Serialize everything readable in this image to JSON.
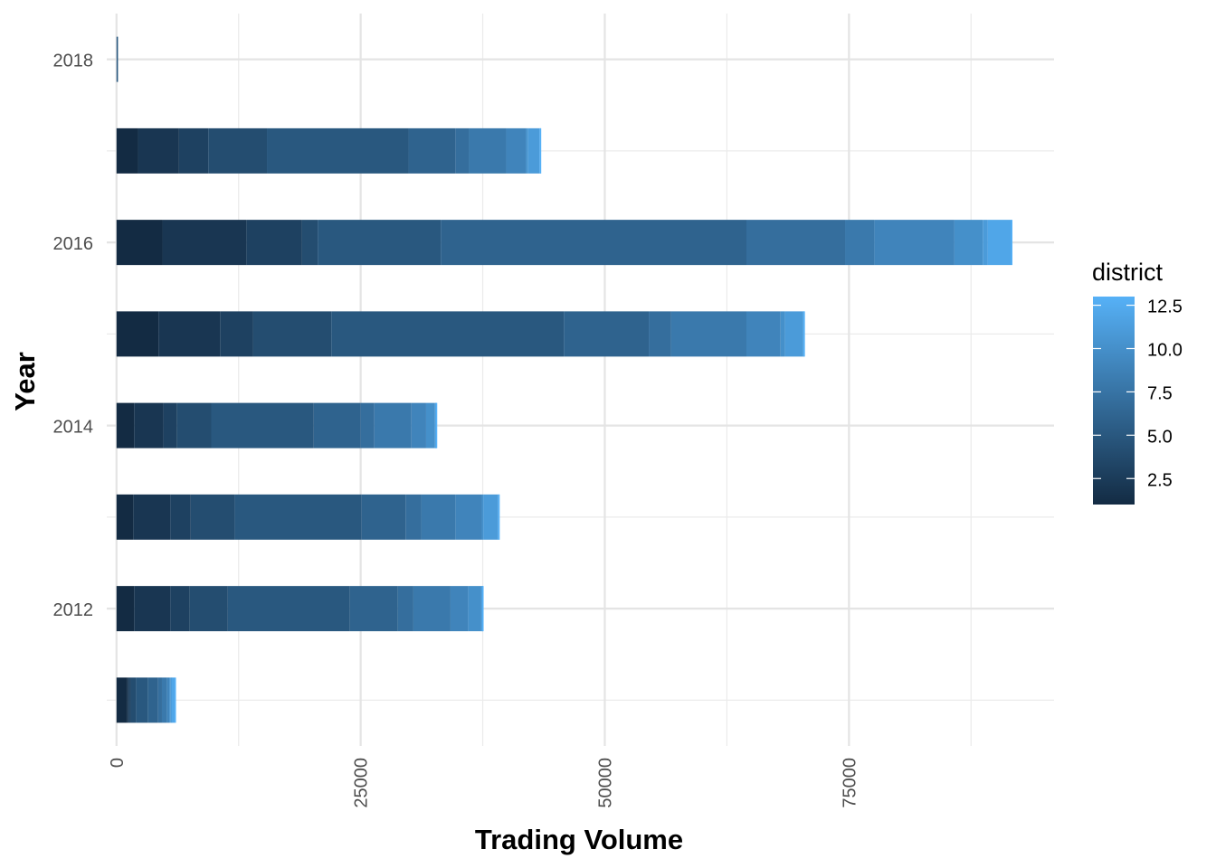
{
  "chart_data": {
    "type": "bar",
    "orientation": "horizontal",
    "stacked": true,
    "xlabel": "Trading Volume",
    "ylabel": "Year",
    "xlim": [
      -1000,
      96000
    ],
    "ylim": [
      2010.5,
      2018.5
    ],
    "x_ticks": [
      "0",
      "25000",
      "50000",
      "75000"
    ],
    "x_tick_values": [
      0,
      25000,
      50000,
      75000
    ],
    "y_ticks": [
      "2012",
      "2014",
      "2016",
      "2018"
    ],
    "y_tick_values": [
      2012,
      2014,
      2016,
      2018
    ],
    "grid": true,
    "legend": {
      "title": "district",
      "position": "right",
      "type": "colorbar",
      "range": [
        1,
        13
      ],
      "ticks": [
        "2.5",
        "5.0",
        "7.5",
        "10.0",
        "12.5"
      ],
      "tick_values": [
        2.5,
        5.0,
        7.5,
        10.0,
        12.5
      ],
      "low_color": "#132B43",
      "high_color": "#56B1F7"
    },
    "series": [
      {
        "year": 2011,
        "segments": [
          {
            "district": 1,
            "value": 1100
          },
          {
            "district": 2,
            "value": 150
          },
          {
            "district": 3,
            "value": 200
          },
          {
            "district": 4,
            "value": 550
          },
          {
            "district": 5,
            "value": 1200
          },
          {
            "district": 6,
            "value": 1050
          },
          {
            "district": 7,
            "value": 400
          },
          {
            "district": 8,
            "value": 500
          },
          {
            "district": 9,
            "value": 250
          },
          {
            "district": 10,
            "value": 150
          },
          {
            "district": 11,
            "value": 100
          },
          {
            "district": 12,
            "value": 300
          },
          {
            "district": 13,
            "value": 50
          }
        ]
      },
      {
        "year": 2012,
        "segments": [
          {
            "district": 1,
            "value": 1800
          },
          {
            "district": 2,
            "value": 3700
          },
          {
            "district": 3,
            "value": 2000
          },
          {
            "district": 4,
            "value": 3900
          },
          {
            "district": 5,
            "value": 12500
          },
          {
            "district": 6,
            "value": 4900
          },
          {
            "district": 7,
            "value": 1600
          },
          {
            "district": 8,
            "value": 3800
          },
          {
            "district": 9,
            "value": 1800
          },
          {
            "district": 10,
            "value": 1350
          },
          {
            "district": 11,
            "value": 50
          },
          {
            "district": 12,
            "value": 50
          },
          {
            "district": 13,
            "value": 50
          }
        ]
      },
      {
        "year": 2013,
        "segments": [
          {
            "district": 1,
            "value": 1700
          },
          {
            "district": 2,
            "value": 3800
          },
          {
            "district": 3,
            "value": 2100
          },
          {
            "district": 4,
            "value": 4500
          },
          {
            "district": 5,
            "value": 13000
          },
          {
            "district": 6,
            "value": 4500
          },
          {
            "district": 7,
            "value": 1600
          },
          {
            "district": 8,
            "value": 3500
          },
          {
            "district": 9,
            "value": 2700
          },
          {
            "district": 10,
            "value": 150
          },
          {
            "district": 11,
            "value": 1500
          },
          {
            "district": 12,
            "value": 50
          },
          {
            "district": 13,
            "value": 50
          }
        ]
      },
      {
        "year": 2014,
        "segments": [
          {
            "district": 1,
            "value": 1800
          },
          {
            "district": 2,
            "value": 3000
          },
          {
            "district": 3,
            "value": 1400
          },
          {
            "district": 4,
            "value": 3500
          },
          {
            "district": 5,
            "value": 10500
          },
          {
            "district": 6,
            "value": 4800
          },
          {
            "district": 7,
            "value": 1400
          },
          {
            "district": 8,
            "value": 3800
          },
          {
            "district": 9,
            "value": 1500
          },
          {
            "district": 10,
            "value": 900
          },
          {
            "district": 11,
            "value": 50
          },
          {
            "district": 12,
            "value": 50
          },
          {
            "district": 13,
            "value": 50
          }
        ]
      },
      {
        "year": 2015,
        "segments": [
          {
            "district": 1,
            "value": 4300
          },
          {
            "district": 2,
            "value": 6300
          },
          {
            "district": 3,
            "value": 3400
          },
          {
            "district": 4,
            "value": 8000
          },
          {
            "district": 5,
            "value": 23800
          },
          {
            "district": 6,
            "value": 8700
          },
          {
            "district": 7,
            "value": 2300
          },
          {
            "district": 8,
            "value": 7700
          },
          {
            "district": 9,
            "value": 3500
          },
          {
            "district": 10,
            "value": 450
          },
          {
            "district": 11,
            "value": 1850
          },
          {
            "district": 12,
            "value": 50
          },
          {
            "district": 13,
            "value": 50
          }
        ]
      },
      {
        "year": 2016,
        "segments": [
          {
            "district": 1,
            "value": 4700
          },
          {
            "district": 2,
            "value": 8600
          },
          {
            "district": 3,
            "value": 5700
          },
          {
            "district": 4,
            "value": 1600
          },
          {
            "district": 5,
            "value": 12600
          },
          {
            "district": 6,
            "value": 31300
          },
          {
            "district": 7,
            "value": 10100
          },
          {
            "district": 8,
            "value": 3000
          },
          {
            "district": 9,
            "value": 8200
          },
          {
            "district": 10,
            "value": 2900
          },
          {
            "district": 11,
            "value": 500
          },
          {
            "district": 12,
            "value": 2400
          },
          {
            "district": 13,
            "value": 50
          }
        ]
      },
      {
        "year": 2017,
        "segments": [
          {
            "district": 1,
            "value": 2200
          },
          {
            "district": 2,
            "value": 4200
          },
          {
            "district": 3,
            "value": 3000
          },
          {
            "district": 4,
            "value": 6000
          },
          {
            "district": 5,
            "value": 14500
          },
          {
            "district": 6,
            "value": 4800
          },
          {
            "district": 7,
            "value": 1400
          },
          {
            "district": 8,
            "value": 3800
          },
          {
            "district": 9,
            "value": 2000
          },
          {
            "district": 10,
            "value": 200
          },
          {
            "district": 11,
            "value": 1200
          },
          {
            "district": 12,
            "value": 50
          },
          {
            "district": 13,
            "value": 50
          }
        ]
      },
      {
        "year": 2018,
        "segments": [
          {
            "district": 5,
            "value": 150
          }
        ]
      }
    ]
  }
}
